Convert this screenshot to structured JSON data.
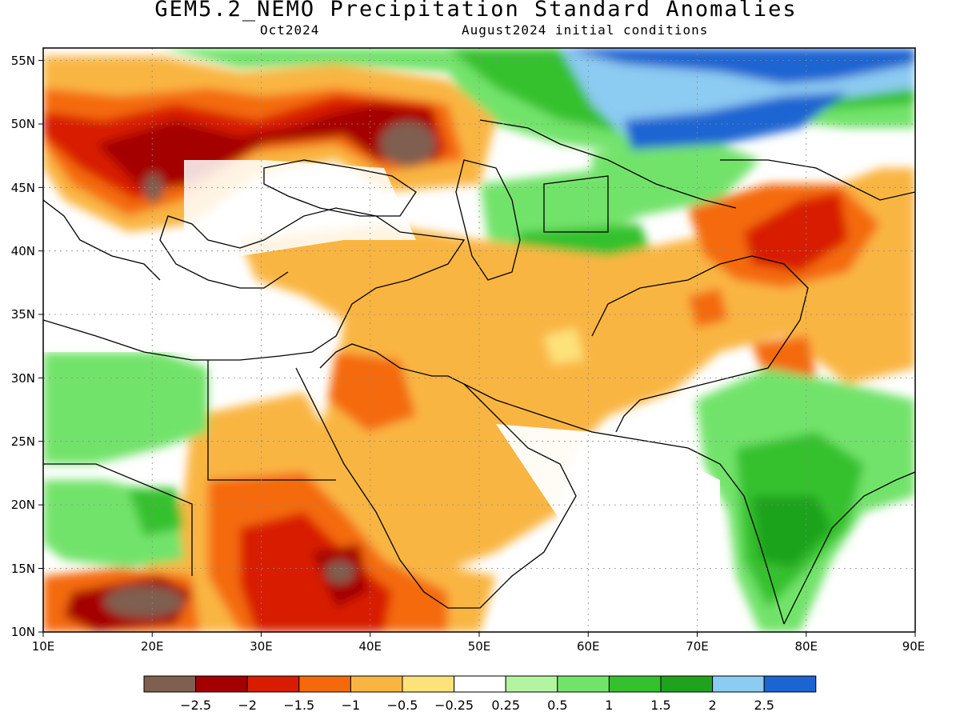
{
  "header": {
    "title": "GEM5.2_NEMO Precipitation Standard Anomalies",
    "valid_month": "Oct2024",
    "init": "August2024 initial conditions"
  },
  "map": {
    "lon_range": [
      10,
      90
    ],
    "lat_range": [
      10,
      56
    ],
    "lon_ticks": [
      "10E",
      "20E",
      "30E",
      "40E",
      "50E",
      "60E",
      "70E",
      "80E",
      "90E"
    ],
    "lat_ticks": [
      "55N",
      "50N",
      "45N",
      "40N",
      "35N",
      "30N",
      "25N",
      "20N",
      "15N",
      "10N"
    ],
    "anomaly_regions": [
      {
        "label": "-2.5",
        "lon": 43.5,
        "lat": 48.5
      },
      {
        "label": "-2.5",
        "lon": 19.0,
        "lat": 12.5
      },
      {
        "label": "-2.5",
        "lon": 37.5,
        "lat": 14.5
      },
      {
        "label": "2.5",
        "lon": 66,
        "lat": 48
      },
      {
        "label": "1.5",
        "lon": 78,
        "lat": 17
      }
    ]
  },
  "colorbar": {
    "colors": [
      "#7f5f50",
      "#a50000",
      "#d81c00",
      "#f46a0a",
      "#f9b542",
      "#fde27a",
      "#ffffff",
      "#b3f4a0",
      "#72e36a",
      "#35c12e",
      "#1fa31e",
      "#8ccbf2",
      "#1a65d2"
    ],
    "labels": [
      "−2.5",
      "−2",
      "−1.5",
      "−1",
      "−0.5",
      "−0.25",
      "0.25",
      "0.5",
      "1",
      "1.5",
      "2",
      "2.5"
    ]
  }
}
